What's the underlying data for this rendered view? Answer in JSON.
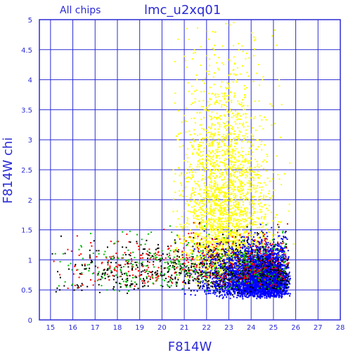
{
  "chart_data": {
    "type": "scatter",
    "title": "lmc_u2xq01",
    "subtitle": "All chips",
    "xlabel": "F814W",
    "ylabel": "F814W chi",
    "xlim": [
      14.5,
      28
    ],
    "ylim": [
      0,
      5
    ],
    "x_ticks": [
      "15",
      "16",
      "17",
      "18",
      "19",
      "20",
      "21",
      "22",
      "23",
      "24",
      "25",
      "26",
      "27",
      "28"
    ],
    "y_ticks": [
      "0",
      "0.5",
      "1",
      "1.5",
      "2",
      "2.5",
      "3",
      "3.5",
      "4",
      "4.5",
      "5"
    ],
    "grid": true,
    "series": [
      {
        "color": "#ffff00",
        "point_count": 2600,
        "region": {
          "x": [
            20.5,
            26.2
          ],
          "y": [
            0.5,
            5.0
          ],
          "center_x": 22.8,
          "center_y": 2.0
        }
      },
      {
        "color": "#0000ff",
        "point_count": 3800,
        "region": {
          "x": [
            20.5,
            25.8
          ],
          "y": [
            0.35,
            1.6
          ],
          "center_x": 23.8,
          "center_y": 0.8
        }
      },
      {
        "color": "#ff0000",
        "point_count": 500,
        "region": {
          "x": [
            15,
            25.8
          ],
          "y": [
            0.35,
            2.3
          ],
          "center_x": 23.0,
          "center_y": 0.95
        }
      },
      {
        "color": "#00c000",
        "point_count": 450,
        "region": {
          "x": [
            15,
            25.8
          ],
          "y": [
            0.3,
            2.0
          ],
          "center_x": 23.0,
          "center_y": 0.9
        }
      },
      {
        "color": "#000000",
        "point_count": 550,
        "region": {
          "x": [
            15,
            25.8
          ],
          "y": [
            0.25,
            2.0
          ],
          "center_x": 22.5,
          "center_y": 0.9
        }
      }
    ]
  },
  "colors": {
    "frame": "#2b2bd6",
    "background": "#ffffff"
  }
}
